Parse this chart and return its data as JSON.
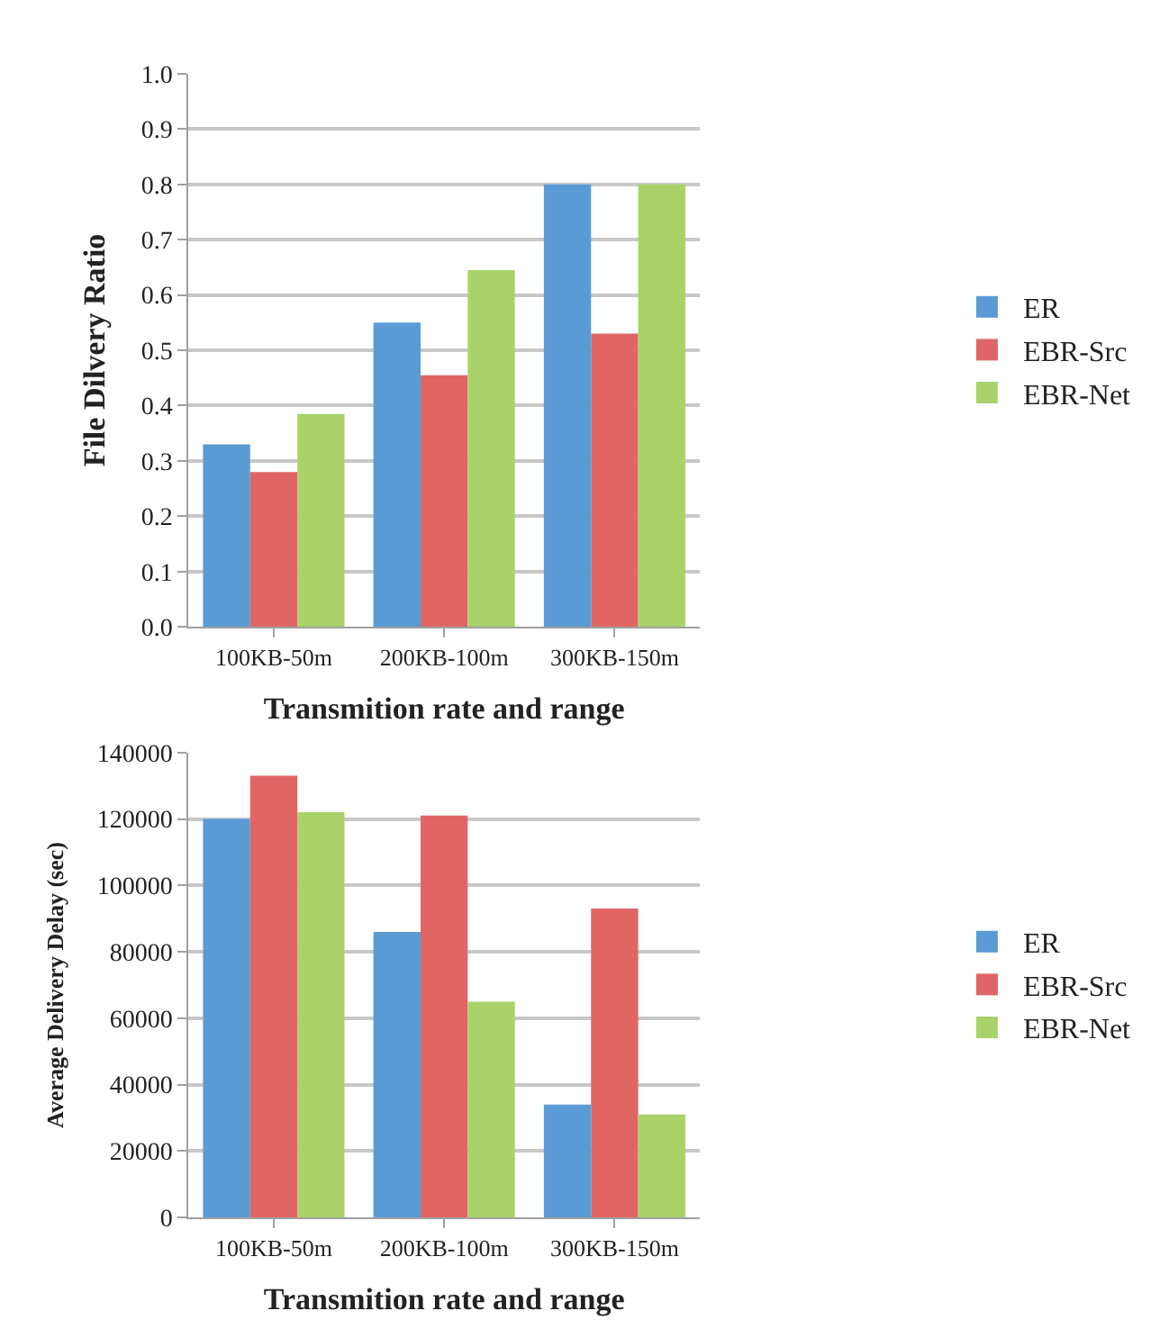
{
  "chart_data": [
    {
      "type": "bar",
      "xlabel": "Transmition rate and range",
      "ylabel": "File Dilvery Ratio",
      "categories": [
        "100KB-50m",
        "200KB-100m",
        "300KB-150m"
      ],
      "series": [
        {
          "name": "ER",
          "color": "#5b9bd5",
          "values": [
            0.33,
            0.55,
            0.8
          ]
        },
        {
          "name": "EBR-Src",
          "color": "#e06666",
          "values": [
            0.28,
            0.455,
            0.53
          ]
        },
        {
          "name": "EBR-Net",
          "color": "#a9d36a",
          "values": [
            0.385,
            0.645,
            0.8
          ]
        }
      ],
      "ylim": [
        0,
        1.0
      ],
      "yticks": [
        {
          "value": 0,
          "label": "0.0"
        },
        0.1,
        0.2,
        0.3,
        0.4,
        0.5,
        0.6,
        0.7,
        0.8,
        0.9,
        {
          "value": 1.0,
          "label": "1.0"
        }
      ],
      "grid": "y",
      "legend": "right"
    },
    {
      "type": "bar",
      "xlabel": "Transmition rate and range",
      "ylabel": "Average Delivery Delay (sec)",
      "categories": [
        "100KB-50m",
        "200KB-100m",
        "300KB-150m"
      ],
      "series": [
        {
          "name": "ER",
          "color": "#5b9bd5",
          "values": [
            120000,
            86000,
            34000
          ]
        },
        {
          "name": "EBR-Src",
          "color": "#e06666",
          "values": [
            133000,
            121000,
            93000
          ]
        },
        {
          "name": "EBR-Net",
          "color": "#a9d36a",
          "values": [
            122000,
            65000,
            31000
          ]
        }
      ],
      "ylim": [
        0,
        140000
      ],
      "yticks": [
        0,
        20000,
        40000,
        60000,
        80000,
        100000,
        120000,
        140000
      ],
      "grid": "y",
      "legend": "right"
    }
  ]
}
